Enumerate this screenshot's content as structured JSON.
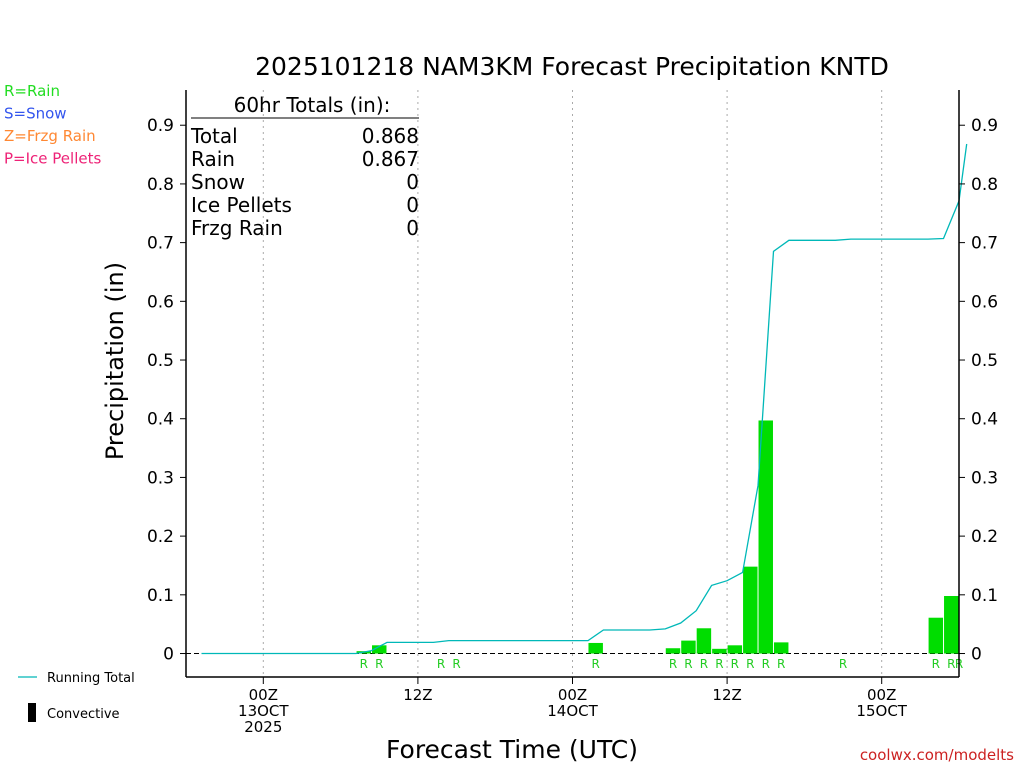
{
  "chart_data": {
    "type": "bar",
    "title": "2025101218 NAM3KM Forecast Precipitation KNTD",
    "xlabel": "Forecast Time (UTC)",
    "ylabel": "Precipitation (in)",
    "ylim": [
      -0.04,
      0.96
    ],
    "xlim": [
      -5,
      45
    ],
    "yticks": [
      0,
      0.1,
      0.2,
      0.3,
      0.4,
      0.5,
      0.6,
      0.7,
      0.8,
      0.9
    ],
    "ytick_labels": [
      "0",
      "0.1",
      "0.2",
      "0.3",
      "0.4",
      "0.5",
      "0.6",
      "0.7",
      "0.8",
      "0.9"
    ],
    "grid_x_hours": [
      0,
      10,
      20,
      30,
      40
    ],
    "x_tick_labels": [
      {
        "h": 0,
        "lines": [
          "00Z",
          "13OCT",
          "2025"
        ]
      },
      {
        "h": 10,
        "lines": [
          "12Z"
        ]
      },
      {
        "h": 20,
        "lines": [
          "00Z",
          "14OCT"
        ]
      },
      {
        "h": 30,
        "lines": [
          "12Z"
        ]
      },
      {
        "h": 40,
        "lines": [
          "00Z",
          "15OCT"
        ]
      }
    ],
    "bars": [
      {
        "h": 6.5,
        "value": 0.004
      },
      {
        "h": 7.5,
        "value": 0.014
      },
      {
        "h": 21.5,
        "value": 0.018
      },
      {
        "h": 26.5,
        "value": 0.009
      },
      {
        "h": 27.5,
        "value": 0.022
      },
      {
        "h": 28.5,
        "value": 0.043
      },
      {
        "h": 29.5,
        "value": 0.008
      },
      {
        "h": 30.5,
        "value": 0.014
      },
      {
        "h": 31.5,
        "value": 0.148
      },
      {
        "h": 32.5,
        "value": 0.397
      },
      {
        "h": 33.5,
        "value": 0.019
      },
      {
        "h": 43.5,
        "value": 0.061
      },
      {
        "h": 44.5,
        "value": 0.098
      }
    ],
    "bar_color": "#00dd00",
    "type_labels": [
      {
        "h": 6.5,
        "t": "R"
      },
      {
        "h": 7.5,
        "t": "R"
      },
      {
        "h": 11.5,
        "t": "R"
      },
      {
        "h": 12.5,
        "t": "R"
      },
      {
        "h": 21.5,
        "t": "R"
      },
      {
        "h": 26.5,
        "t": "R"
      },
      {
        "h": 27.5,
        "t": "R"
      },
      {
        "h": 28.5,
        "t": "R"
      },
      {
        "h": 29.5,
        "t": "R"
      },
      {
        "h": 30.5,
        "t": "R"
      },
      {
        "h": 31.5,
        "t": "R"
      },
      {
        "h": 32.5,
        "t": "R"
      },
      {
        "h": 33.5,
        "t": "R"
      },
      {
        "h": 37.5,
        "t": "R"
      },
      {
        "h": 43.5,
        "t": "R"
      },
      {
        "h": 44.5,
        "t": "R"
      },
      {
        "h": 45,
        "t": "R"
      }
    ],
    "running_total": {
      "name": "Running Total",
      "color": "#00b8b8",
      "points": [
        [
          -4,
          0
        ],
        [
          6,
          0
        ],
        [
          7,
          0.005
        ],
        [
          8,
          0.019
        ],
        [
          10,
          0.019
        ],
        [
          11,
          0.019
        ],
        [
          12,
          0.022
        ],
        [
          21,
          0.022
        ],
        [
          22,
          0.04
        ],
        [
          25,
          0.04
        ],
        [
          26,
          0.042
        ],
        [
          27,
          0.052
        ],
        [
          28,
          0.073
        ],
        [
          29,
          0.116
        ],
        [
          30,
          0.124
        ],
        [
          31,
          0.138
        ],
        [
          32,
          0.286
        ],
        [
          33,
          0.685
        ],
        [
          34,
          0.704
        ],
        [
          37,
          0.704
        ],
        [
          38,
          0.706
        ],
        [
          43,
          0.706
        ],
        [
          44,
          0.707
        ],
        [
          45,
          0.771
        ],
        [
          45.5,
          0.868
        ]
      ]
    },
    "totals_box": {
      "title": "60hr Totals (in):",
      "rows": [
        {
          "label": "Total",
          "value": "0.868"
        },
        {
          "label": "Rain",
          "value": "0.867"
        },
        {
          "label": "Snow",
          "value": "0"
        },
        {
          "label": "Ice Pellets",
          "value": "0"
        },
        {
          "label": "Frzg Rain",
          "value": "0"
        }
      ]
    },
    "legend_types": [
      {
        "text": "R=Rain",
        "color": "#22dd22"
      },
      {
        "text": "S=Snow",
        "color": "#3355ee"
      },
      {
        "text": "Z=Frzg Rain",
        "color": "#ff8833"
      },
      {
        "text": "P=Ice Pellets",
        "color": "#ee2277"
      }
    ],
    "legend_bottom": [
      {
        "text": "Running Total"
      },
      {
        "text": "Convective"
      }
    ],
    "credit": "coolwx.com/modelts"
  }
}
